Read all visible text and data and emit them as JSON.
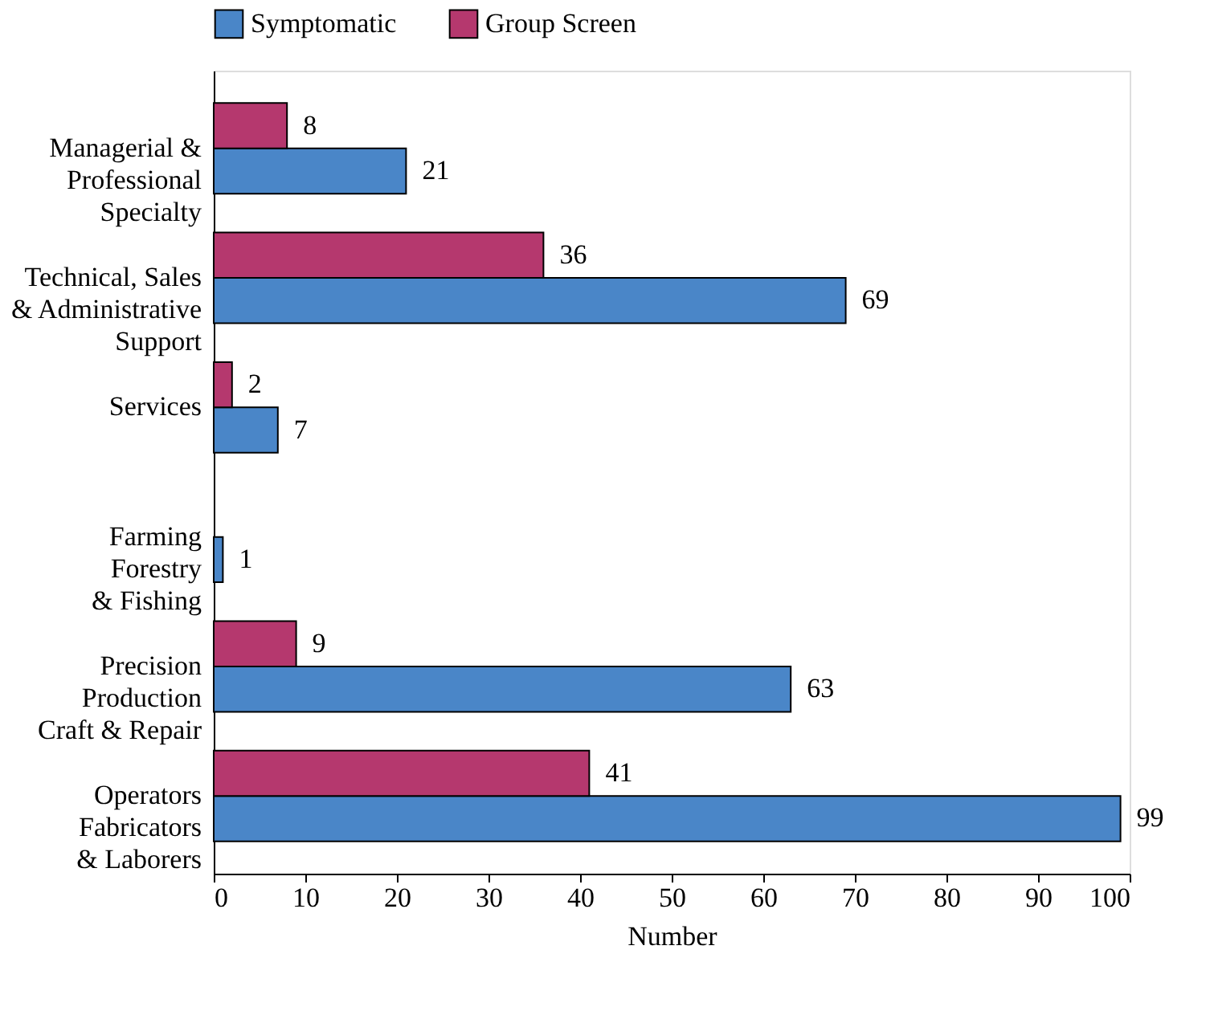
{
  "chart_data": {
    "type": "bar",
    "orientation": "horizontal",
    "xlabel": "Number",
    "categories": [
      "Managerial &\nProfessional\nSpecialty",
      "Technical, Sales\n& Administrative\nSupport",
      "Services",
      "Farming\nForestry\n& Fishing",
      "Precision\nProduction\nCraft & Repair",
      "Operators\nFabricators\n& Laborers"
    ],
    "series": [
      {
        "name": "Symptomatic",
        "color": "#4a86c8",
        "values": [
          21,
          69,
          7,
          1,
          63,
          99
        ]
      },
      {
        "name": "Group Screen",
        "color": "#b5386e",
        "values": [
          8,
          36,
          2,
          null,
          9,
          41
        ]
      }
    ],
    "xlim": [
      0,
      100
    ],
    "xticks": [
      0,
      10,
      20,
      30,
      40,
      50,
      60,
      70,
      80,
      90,
      100
    ],
    "grid": false,
    "legend": "top",
    "data_labels": true
  }
}
